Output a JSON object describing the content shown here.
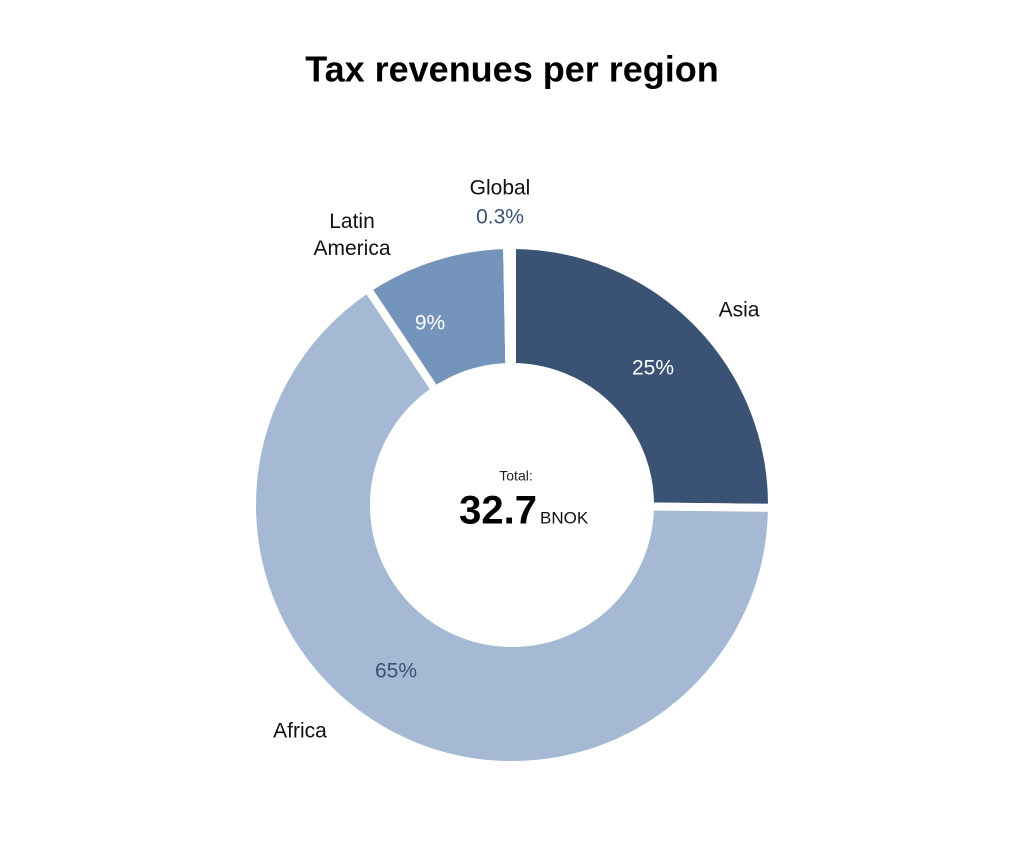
{
  "chart_data": {
    "type": "donut",
    "title": "Tax revenues per region",
    "categories": [
      "Asia",
      "Africa",
      "Latin America",
      "Global"
    ],
    "values": [
      25,
      65,
      9,
      0.3
    ],
    "value_labels": [
      "25%",
      "65%",
      "9%",
      "0.3%"
    ],
    "colors": [
      "#3a5273",
      "#a5b8d4",
      "#7594bc",
      "#94cbc6"
    ],
    "total": {
      "label": "Total:",
      "value": 32.7,
      "unit": "BNOK"
    }
  }
}
